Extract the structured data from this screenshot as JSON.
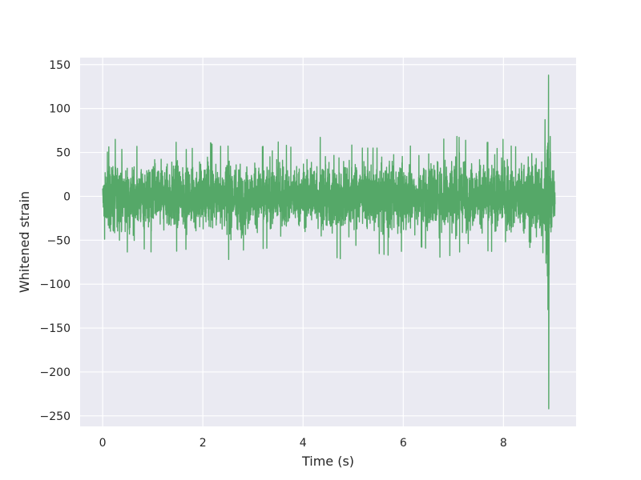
{
  "chart_data": {
    "type": "line",
    "title": "",
    "xlabel": "Time (s)",
    "ylabel": "Whitened strain",
    "xlim": [
      -0.45,
      9.45
    ],
    "ylim": [
      -262,
      158
    ],
    "xticks": [
      0,
      2,
      4,
      6,
      8
    ],
    "yticks": [
      150,
      100,
      50,
      0,
      -50,
      -100,
      -150,
      -200,
      -250
    ],
    "ytick_labels": [
      "150",
      "100",
      "50",
      "0",
      "−50",
      "−100",
      "−150",
      "−200",
      "−250"
    ],
    "grid": true,
    "legend": "none",
    "background_color": "#eaeaf2",
    "grid_color": "#ffffff",
    "series": [
      {
        "color": "#55a868",
        "time_range": [
          0,
          9.03
        ],
        "envelope": [
          {
            "x": 0.0,
            "max": 30,
            "min": -45
          },
          {
            "x": 0.13,
            "max": 58,
            "min": -58
          },
          {
            "x": 0.25,
            "max": 65,
            "min": -75
          },
          {
            "x": 0.4,
            "max": 52,
            "min": -82
          },
          {
            "x": 0.75,
            "max": 58,
            "min": -58
          },
          {
            "x": 0.95,
            "max": 56,
            "min": -63
          },
          {
            "x": 1.2,
            "max": 66,
            "min": -68
          },
          {
            "x": 1.5,
            "max": 61,
            "min": -62
          },
          {
            "x": 1.7,
            "max": 52,
            "min": -60
          },
          {
            "x": 2.1,
            "max": 64,
            "min": -63
          },
          {
            "x": 2.3,
            "max": 53,
            "min": -55
          },
          {
            "x": 2.5,
            "max": 68,
            "min": -72
          },
          {
            "x": 2.8,
            "max": 55,
            "min": -70
          },
          {
            "x": 3.1,
            "max": 55,
            "min": -60
          },
          {
            "x": 3.5,
            "max": 62,
            "min": -58
          },
          {
            "x": 3.8,
            "max": 55,
            "min": -57
          },
          {
            "x": 4.0,
            "max": 55,
            "min": -56
          },
          {
            "x": 4.23,
            "max": 78,
            "min": -52
          },
          {
            "x": 4.5,
            "max": 52,
            "min": -67
          },
          {
            "x": 4.8,
            "max": 63,
            "min": -72
          },
          {
            "x": 5.1,
            "max": 55,
            "min": -53
          },
          {
            "x": 5.5,
            "max": 55,
            "min": -65
          },
          {
            "x": 5.8,
            "max": 65,
            "min": -68
          },
          {
            "x": 6.2,
            "max": 56,
            "min": -55
          },
          {
            "x": 6.5,
            "max": 66,
            "min": -60
          },
          {
            "x": 6.8,
            "max": 65,
            "min": -72
          },
          {
            "x": 7.0,
            "max": 70,
            "min": -65
          },
          {
            "x": 7.4,
            "max": 60,
            "min": -60
          },
          {
            "x": 7.8,
            "max": 62,
            "min": -63
          },
          {
            "x": 8.0,
            "max": 65,
            "min": -65
          },
          {
            "x": 8.2,
            "max": 55,
            "min": -70
          },
          {
            "x": 8.4,
            "max": 62,
            "min": -70
          },
          {
            "x": 8.55,
            "max": 72,
            "min": -82
          },
          {
            "x": 8.7,
            "max": 83,
            "min": -95
          },
          {
            "x": 8.85,
            "max": 88,
            "min": -100
          },
          {
            "x": 8.9,
            "max": 138,
            "min": -242
          },
          {
            "x": 8.95,
            "max": 60,
            "min": -75
          },
          {
            "x": 9.03,
            "max": 30,
            "min": -45
          }
        ]
      }
    ]
  }
}
